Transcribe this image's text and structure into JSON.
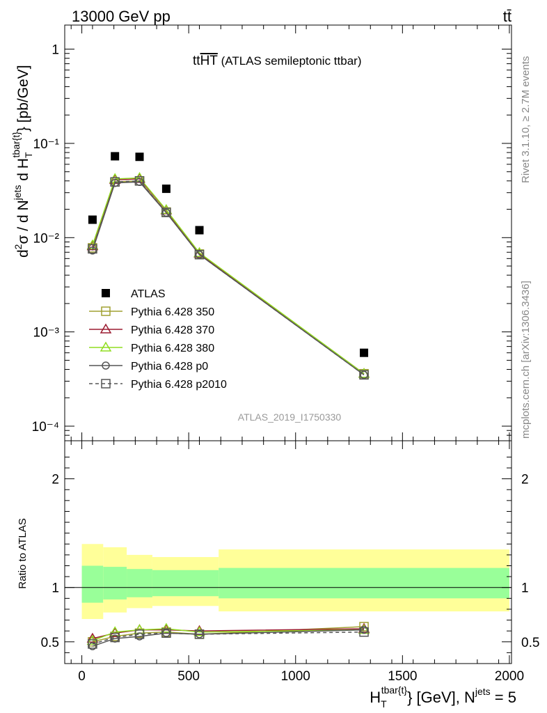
{
  "header": {
    "left": "13000 GeV pp",
    "right": "tt̄"
  },
  "side_labels": {
    "rivet": "Rivet 3.1.10, ≥ 2.7M events",
    "mcplots": "mcplots.cern.ch [arXiv:1306.3436]"
  },
  "chart_data": {
    "type": "line",
    "title_main": "tt",
    "title_overline": "HT",
    "title_rest": " (ATLAS semileptonic ttbar)",
    "watermark": "ATLAS_2019_I1750330",
    "ylabel_main": "d²σ / d N^jets d H_T^tbar{t} [pb/GeV]",
    "ylabel_ratio": "Ratio to ATLAS",
    "xlabel": "H_T^tbar{t} [GeV], N^jets = 5",
    "xlim": [
      -80,
      2010
    ],
    "ylim_main": [
      7e-05,
      1.8
    ],
    "ylim_ratio": [
      0.3,
      2.35
    ],
    "y_scale_main": "log",
    "x_ticks": [
      "0",
      "500",
      "1000",
      "1500",
      "2000"
    ],
    "y_ticks_main": [
      "10⁻⁴",
      "10⁻³",
      "10⁻²",
      "10⁻¹",
      "1"
    ],
    "y_ticks_ratio": [
      "0.5",
      "1",
      "2"
    ],
    "data": {
      "name": "ATLAS",
      "x": [
        50,
        155,
        270,
        395,
        550,
        1320
      ],
      "y": [
        0.0155,
        0.073,
        0.072,
        0.033,
        0.012,
        0.0006
      ]
    },
    "bands": {
      "edges": [
        0,
        100,
        210,
        330,
        640,
        2000
      ],
      "stat_lo": [
        0.86,
        0.89,
        0.91,
        0.92,
        0.9
      ],
      "stat_hi": [
        1.2,
        1.19,
        1.17,
        1.16,
        1.18
      ],
      "tot_lo": [
        0.71,
        0.77,
        0.81,
        0.83,
        0.78
      ],
      "tot_hi": [
        1.4,
        1.37,
        1.3,
        1.28,
        1.35
      ]
    },
    "series": [
      {
        "name": "Pythia 6.428 350",
        "color": "#a0a030",
        "marker": "square-open",
        "dash": false,
        "y": [
          0.0078,
          0.039,
          0.04,
          0.0187,
          0.0067,
          0.00036
        ],
        "ratio": [
          0.5,
          0.55,
          0.58,
          0.59,
          0.57,
          0.64
        ]
      },
      {
        "name": "Pythia 6.428 370",
        "color": "#9b1b30",
        "marker": "triangle-open",
        "dash": false,
        "y": [
          0.0081,
          0.041,
          0.042,
          0.0195,
          0.0068,
          0.00036
        ],
        "ratio": [
          0.53,
          0.58,
          0.61,
          0.61,
          0.6,
          0.62
        ]
      },
      {
        "name": "Pythia 6.428 380",
        "color": "#90dd20",
        "marker": "triangle-open",
        "dash": false,
        "y": [
          0.0083,
          0.042,
          0.043,
          0.0197,
          0.0069,
          0.00036
        ],
        "ratio": [
          0.51,
          0.59,
          0.61,
          0.62,
          0.59,
          0.61
        ]
      },
      {
        "name": "Pythia 6.428 p0",
        "color": "#555555",
        "marker": "circle-open",
        "dash": false,
        "y": [
          0.0073,
          0.038,
          0.039,
          0.0184,
          0.0066,
          0.00035
        ],
        "ratio": [
          0.46,
          0.53,
          0.55,
          0.58,
          0.57,
          0.61
        ]
      },
      {
        "name": "Pythia 6.428 p2010",
        "color": "#555555",
        "marker": "square-open",
        "dash": true,
        "y": [
          0.0076,
          0.039,
          0.04,
          0.0185,
          0.0066,
          0.00035
        ],
        "ratio": [
          0.48,
          0.54,
          0.57,
          0.58,
          0.57,
          0.59
        ]
      }
    ]
  }
}
